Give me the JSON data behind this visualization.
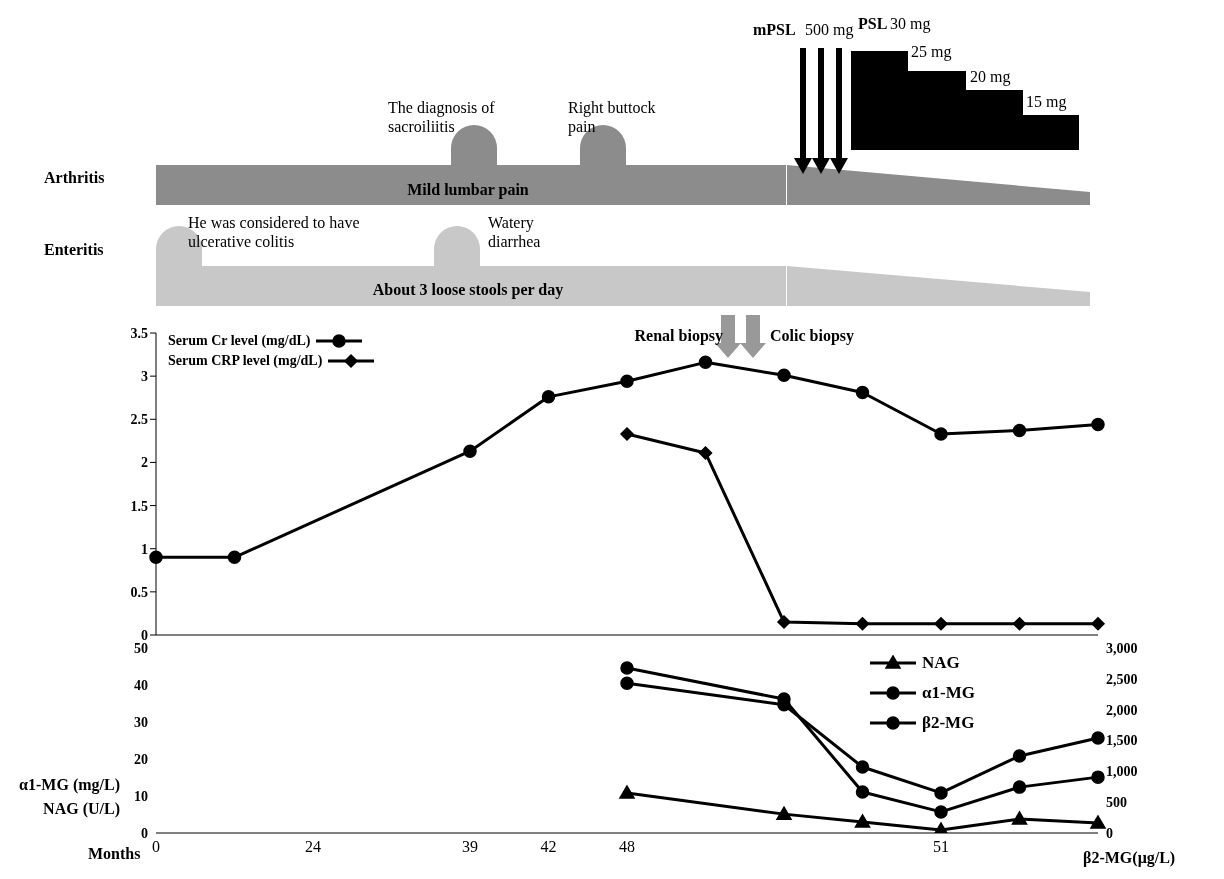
{
  "chart_data": [
    {
      "type": "line",
      "categories": [
        "0",
        null,
        "24",
        null,
        "39",
        "42",
        "48",
        null,
        null,
        null,
        "51",
        null,
        null
      ],
      "ylim": [
        0,
        3.5
      ],
      "yticks": [
        0,
        0.5,
        1,
        1.5,
        2,
        2.5,
        3,
        3.5
      ],
      "grid": false,
      "legend": "top left",
      "tick_labels": "y",
      "line_style": "solid",
      "series": [
        {
          "name": "Serum Cr level (mg/dL)",
          "color": "#000000",
          "marker": "circle",
          "values": [
            0.9,
            0.9,
            null,
            null,
            2.13,
            2.76,
            2.94,
            3.16,
            3.01,
            2.81,
            2.33,
            2.37,
            2.44
          ]
        },
        {
          "name": "Serum CRP level (mg/dL)",
          "color": "#000000",
          "marker": "diamond",
          "values": [
            null,
            null,
            null,
            null,
            null,
            null,
            2.33,
            2.11,
            0.15,
            0.13,
            0.13,
            0.13,
            0.13
          ]
        }
      ],
      "annotations": [
        "Arthritis",
        "Mild lumbar pain",
        "The diagnosis of sacroiliitis",
        "Right buttock pain",
        "Enteritis",
        "About 3 loose stools per day",
        "He was considered to have ulcerative colitis",
        "Watery diarrhea",
        "mPSL",
        "500 mg",
        "PSL",
        "30 mg",
        "25 mg",
        "20 mg",
        "15 mg",
        "Renal biopsy",
        "Colic biopsy"
      ]
    },
    {
      "type": "line",
      "categories": [
        "0",
        null,
        "24",
        null,
        "39",
        "42",
        "48",
        null,
        null,
        null,
        "51",
        null,
        null
      ],
      "xlabel": "Months",
      "ylabel": "α1-MG (mg/L)\nNAG (U/L)",
      "y2label": "β2-MG(μg/L)",
      "ylim": [
        0,
        50
      ],
      "yticks": [
        0,
        10,
        20,
        30,
        40,
        50
      ],
      "y2lim": [
        0,
        3000
      ],
      "y2ticks": [
        0,
        500,
        {
          "value": 1000,
          "label": "1,000"
        },
        {
          "value": 1500,
          "label": "1,500"
        },
        {
          "value": 2000,
          "label": "2,000"
        },
        {
          "value": 2500,
          "label": "2,500"
        },
        {
          "value": 3000,
          "label": "3,000"
        }
      ],
      "grid": false,
      "legend": "top right",
      "line_style": "solid",
      "series": [
        {
          "name": "NAG",
          "color": "#000000",
          "marker": "triangle",
          "values": [
            null,
            null,
            null,
            null,
            null,
            null,
            10.8,
            null,
            5.1,
            3.0,
            0.8,
            3.8,
            2.7
          ]
        },
        {
          "name": "α1-MG",
          "color": "#000000",
          "marker": "circle",
          "values": [
            null,
            null,
            null,
            null,
            null,
            null,
            44.6,
            null,
            36.2,
            11.1,
            5.7,
            12.4,
            15.1
          ]
        },
        {
          "name": "β2-MG",
          "color": "#000000",
          "marker": "circle",
          "axis": "y2",
          "values": [
            null,
            null,
            null,
            null,
            null,
            null,
            2430,
            null,
            2080,
            1070,
            650,
            1250,
            1540
          ]
        }
      ]
    }
  ]
}
